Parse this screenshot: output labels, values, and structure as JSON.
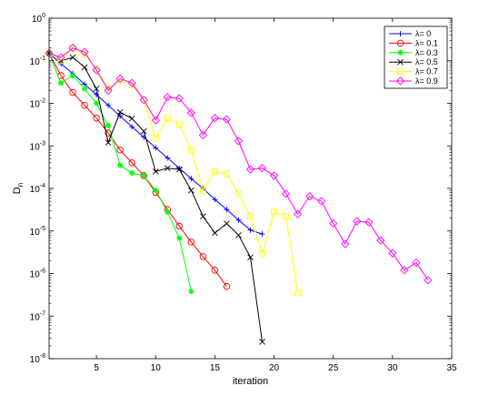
{
  "chart_data": {
    "type": "line",
    "title": "",
    "xlabel": "iteration",
    "ylabel": "D",
    "ylabel_sub": "n",
    "xlim": [
      1,
      35
    ],
    "ylim": [
      1e-08,
      1
    ],
    "yscale": "log",
    "grid": false,
    "legend_position": "top-right",
    "x_ticks": [
      5,
      10,
      15,
      20,
      25,
      30,
      35
    ],
    "y_tick_exponents": [
      0,
      -1,
      -2,
      -3,
      -4,
      -5,
      -6,
      -7,
      -8
    ],
    "y_tick_base": "10",
    "series": [
      {
        "name": "λ= 0",
        "color": "#0000ff",
        "marker": "plus",
        "x": [
          1,
          2,
          3,
          4,
          5,
          6,
          7,
          8,
          9,
          10,
          11,
          12,
          13,
          14,
          15,
          16,
          17,
          18,
          19
        ],
        "y": [
          0.15,
          0.085,
          0.05,
          0.028,
          0.016,
          0.009,
          0.005,
          0.0028,
          0.0016,
          0.0009,
          0.00052,
          0.0003,
          0.00017,
          0.0001,
          5.5e-05,
          3.2e-05,
          1.8e-05,
          1.05e-05,
          8.5e-06
        ]
      },
      {
        "name": "λ= 0.1",
        "color": "#ff0000",
        "marker": "circle",
        "x": [
          1,
          2,
          3,
          4,
          5,
          6,
          7,
          8,
          9,
          10,
          11,
          12,
          13,
          14,
          15,
          16
        ],
        "y": [
          0.15,
          0.045,
          0.018,
          0.009,
          0.0045,
          0.002,
          0.0008,
          0.0004,
          0.0002,
          8e-05,
          3.2e-05,
          1.3e-05,
          5.5e-06,
          2.5e-06,
          1.2e-06,
          5e-07
        ]
      },
      {
        "name": "λ= 0.3",
        "color": "#00ff00",
        "marker": "star",
        "x": [
          1,
          2,
          3,
          4,
          5,
          6,
          7,
          8,
          9,
          10,
          11,
          12,
          13
        ],
        "y": [
          0.15,
          0.03,
          0.045,
          0.022,
          0.01,
          0.003,
          0.00035,
          0.00023,
          0.0002,
          9e-05,
          2.8e-05,
          6.8e-06,
          3.8e-07
        ]
      },
      {
        "name": "λ= 0.5",
        "color": "#000000",
        "marker": "x",
        "x": [
          1,
          2,
          3,
          4,
          5,
          6,
          7,
          8,
          9,
          10,
          11,
          12,
          13,
          14,
          15,
          16,
          17,
          18,
          19
        ],
        "y": [
          0.15,
          0.1,
          0.12,
          0.07,
          0.022,
          0.0012,
          0.0062,
          0.0044,
          0.0022,
          0.00025,
          0.0003,
          0.00028,
          9e-05,
          2.2e-05,
          9e-06,
          1.5e-05,
          8e-06,
          2.4e-06,
          2.5e-08
        ]
      },
      {
        "name": "λ= 0.7",
        "color": "#ffff00",
        "marker": "square",
        "x": [
          1,
          2,
          3,
          4,
          5,
          6,
          7,
          8,
          9,
          10,
          11,
          12,
          13,
          14,
          15,
          16,
          17,
          18,
          19,
          20,
          21,
          22
        ],
        "y": [
          0.15,
          0.1,
          0.2,
          0.14,
          0.065,
          0.022,
          0.035,
          0.027,
          0.012,
          0.0015,
          0.0045,
          0.0032,
          0.0008,
          9e-05,
          0.00025,
          0.00022,
          7.5e-05,
          2.2e-05,
          3e-06,
          2.8e-05,
          2.2e-05,
          3.5e-07
        ]
      },
      {
        "name": "λ= 0.9",
        "color": "#ff00ff",
        "marker": "diamond",
        "x": [
          1,
          2,
          3,
          4,
          5,
          6,
          7,
          8,
          9,
          10,
          11,
          12,
          13,
          14,
          15,
          16,
          17,
          18,
          19,
          20,
          21,
          22,
          23,
          24,
          25,
          26,
          27,
          28,
          29,
          30,
          31,
          32,
          33
        ],
        "y": [
          0.15,
          0.12,
          0.2,
          0.16,
          0.06,
          0.02,
          0.038,
          0.03,
          0.012,
          0.004,
          0.014,
          0.013,
          0.006,
          0.0018,
          0.0045,
          0.0042,
          0.0013,
          0.00028,
          0.0003,
          0.0002,
          7.5e-05,
          2.5e-05,
          6.5e-05,
          5e-05,
          1.5e-05,
          5e-06,
          1.7e-05,
          1.6e-05,
          6e-06,
          3e-06,
          1.2e-06,
          1.8e-06,
          7e-07
        ]
      }
    ]
  }
}
